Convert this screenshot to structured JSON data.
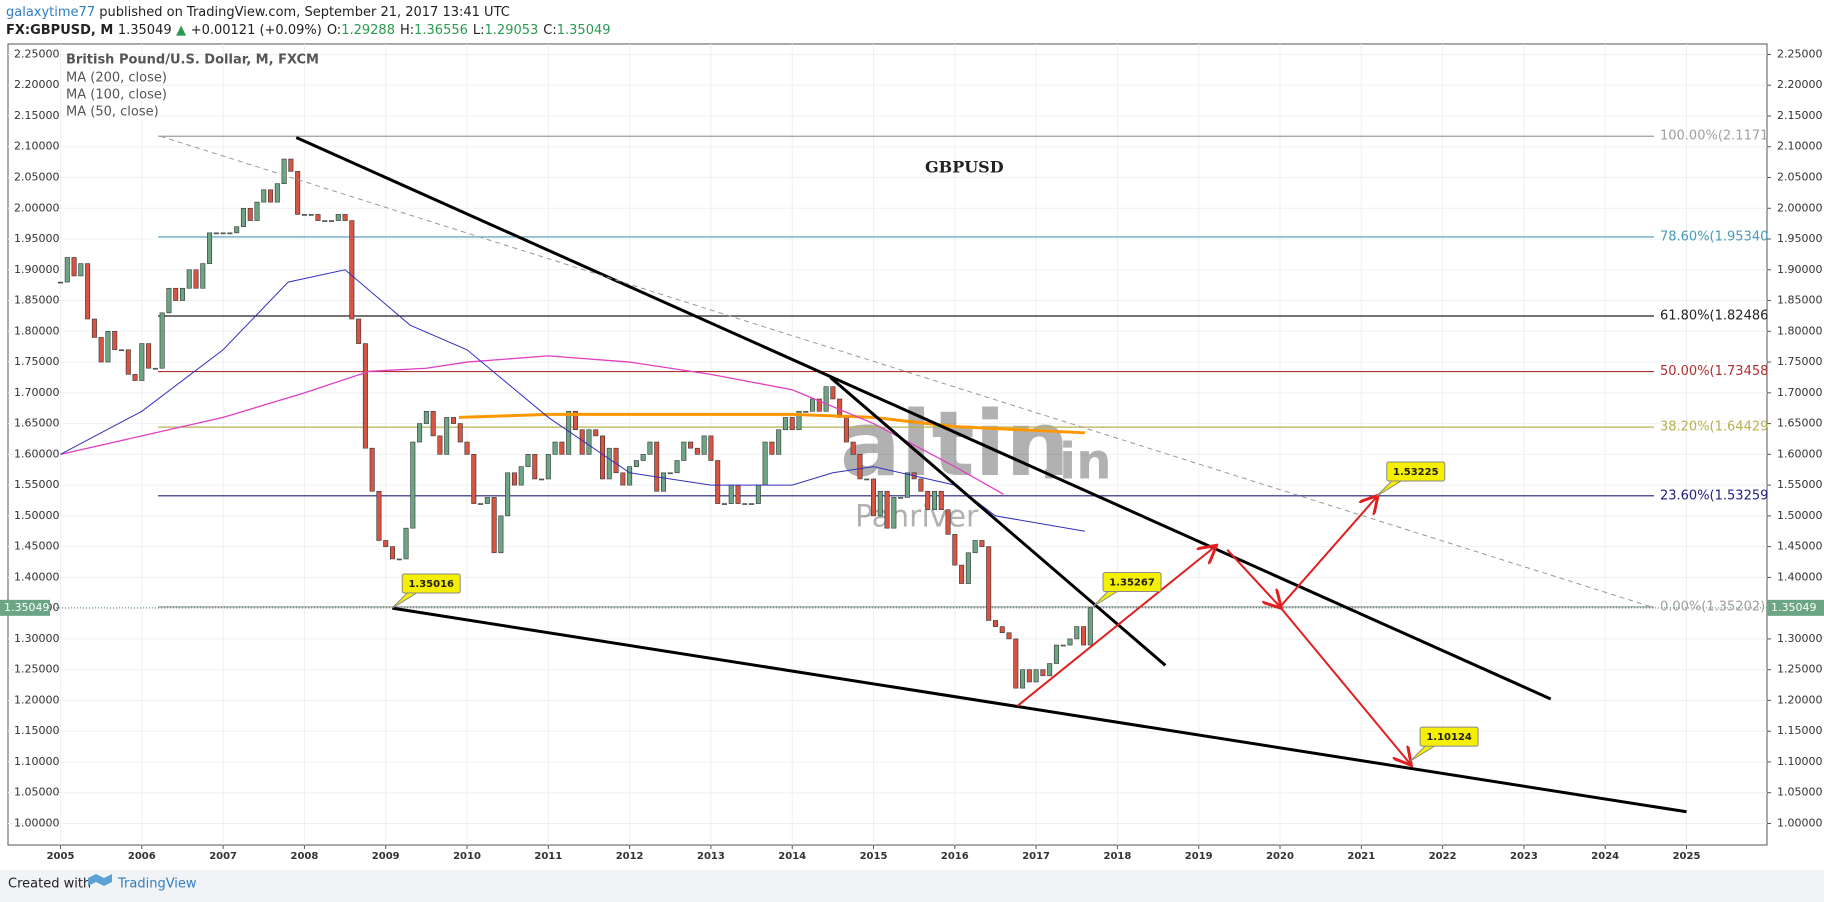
{
  "header": {
    "author": "galaxytime77",
    "published": "published on TradingView.com, September 21, 2017 13:41 UTC",
    "symbol": "FX:GBPUSD, M",
    "last": "1.35049",
    "arrow": "▲",
    "change": "+0.00121 (+0.09%)",
    "ohlc": [
      {
        "label": "O:",
        "value": "1.29288"
      },
      {
        "label": "H:",
        "value": "1.36556"
      },
      {
        "label": "L:",
        "value": "1.29053"
      },
      {
        "label": "C:",
        "value": "1.35049"
      }
    ]
  },
  "footer": {
    "created": "Created with",
    "brand": "TradingView"
  },
  "watermark": {
    "brand": "altin",
    "tld": ".in",
    "sub": "Panriver"
  },
  "chart_data": {
    "type": "candlestick",
    "title": "GBPUSD",
    "legend_title": "British Pound/U.S. Dollar, M, FXCM",
    "first_x": 2005,
    "up_color": "#6ba583",
    "down_color": "#d75442",
    "close": [
      1.88,
      1.92,
      1.89,
      1.91,
      1.82,
      1.79,
      1.75,
      1.8,
      1.77,
      1.77,
      1.73,
      1.72,
      1.78,
      1.74,
      1.74,
      1.83,
      1.87,
      1.85,
      1.87,
      1.9,
      1.87,
      1.91,
      1.96,
      1.96,
      1.96,
      1.96,
      1.97,
      2.0,
      1.98,
      2.01,
      2.03,
      2.01,
      2.04,
      2.08,
      2.06,
      1.99,
      1.99,
      1.99,
      1.98,
      1.98,
      1.98,
      1.99,
      1.98,
      1.82,
      1.78,
      1.61,
      1.54,
      1.46,
      1.45,
      1.43,
      1.43,
      1.48,
      1.62,
      1.65,
      1.67,
      1.63,
      1.6,
      1.66,
      1.65,
      1.62,
      1.6,
      1.52,
      1.52,
      1.53,
      1.44,
      1.5,
      1.57,
      1.55,
      1.58,
      1.6,
      1.56,
      1.56,
      1.6,
      1.62,
      1.6,
      1.67,
      1.64,
      1.6,
      1.64,
      1.63,
      1.56,
      1.61,
      1.57,
      1.55,
      1.58,
      1.59,
      1.6,
      1.62,
      1.54,
      1.57,
      1.57,
      1.59,
      1.62,
      1.61,
      1.6,
      1.63,
      1.59,
      1.52,
      1.52,
      1.55,
      1.52,
      1.52,
      1.52,
      1.55,
      1.62,
      1.6,
      1.64,
      1.66,
      1.64,
      1.67,
      1.67,
      1.69,
      1.67,
      1.71,
      1.69,
      1.66,
      1.62,
      1.6,
      1.56,
      1.56,
      1.5,
      1.54,
      1.48,
      1.53,
      1.53,
      1.57,
      1.56,
      1.54,
      1.51,
      1.54,
      1.51,
      1.47,
      1.42,
      1.39,
      1.44,
      1.46,
      1.45,
      1.33,
      1.32,
      1.31,
      1.3,
      1.22,
      1.25,
      1.23,
      1.25,
      1.24,
      1.26,
      1.29,
      1.29,
      1.3,
      1.32,
      1.29,
      1.35049
    ],
    "series": [
      {
        "name": "MA (200, close)",
        "color": "#ff9800",
        "width": 3,
        "x": [
          2009.9,
          2011,
          2012,
          2013,
          2014,
          2015,
          2016,
          2017.6
        ],
        "values": [
          1.66,
          1.665,
          1.665,
          1.665,
          1.665,
          1.66,
          1.645,
          1.635
        ]
      },
      {
        "name": "MA (100, close)",
        "color": "#e040c0",
        "width": 1.3,
        "x": [
          2005,
          2006,
          2007,
          2008,
          2008.8,
          2009.5,
          2010,
          2011,
          2012,
          2013,
          2014,
          2015,
          2016,
          2016.6
        ],
        "values": [
          1.6,
          1.63,
          1.66,
          1.7,
          1.735,
          1.74,
          1.75,
          1.76,
          1.75,
          1.73,
          1.705,
          1.65,
          1.58,
          1.535
        ]
      },
      {
        "name": "MA (50, close)",
        "color": "#3030c0",
        "width": 1,
        "x": [
          2005,
          2006,
          2007,
          2007.8,
          2008.5,
          2009.3,
          2010,
          2011,
          2012,
          2013,
          2014,
          2014.5,
          2015,
          2016,
          2016.5,
          2017.6
        ],
        "values": [
          1.6,
          1.67,
          1.77,
          1.88,
          1.9,
          1.81,
          1.77,
          1.66,
          1.57,
          1.55,
          1.55,
          1.57,
          1.58,
          1.55,
          1.5,
          1.475
        ]
      }
    ],
    "fib": {
      "x": [
        2006.2,
        2024.6
      ],
      "levels": [
        {
          "label": "100.00%(2.1171",
          "value": 2.1171,
          "color": "#9e9e9e"
        },
        {
          "label": "78.60%(1.95340",
          "value": 1.9534,
          "color": "#4a9ab8"
        },
        {
          "label": "61.80%(1.82486",
          "value": 1.82486,
          "color": "#222222"
        },
        {
          "label": "50.00%(1.73458",
          "value": 1.73458,
          "color": "#b03030"
        },
        {
          "label": "38.20%(1.64429",
          "value": 1.64429,
          "color": "#b8b050"
        },
        {
          "label": "23.60%(1.53259",
          "value": 1.53259,
          "color": "#202080"
        },
        {
          "label": "0.00%(1.35202)",
          "value": 1.35202,
          "color": "#9e9e9e"
        }
      ]
    },
    "trendlines": [
      {
        "x": [
          2007.9,
          2023.33
        ],
        "values": [
          2.115,
          1.2024
        ],
        "color": "#000000",
        "width": 3
      },
      {
        "x": [
          2009.08,
          2025.0
        ],
        "values": [
          1.35,
          1.019
        ],
        "color": "#000000",
        "width": 3
      },
      {
        "x": [
          2014.47,
          2018.59
        ],
        "values": [
          1.725,
          1.257
        ],
        "color": "#000000",
        "width": 3
      },
      {
        "x": [
          2006.23,
          2024.57
        ],
        "values": [
          2.117,
          1.352
        ],
        "color": "#999999",
        "width": 1,
        "dashed": true
      }
    ],
    "arrows": [
      {
        "x": [
          2016.77,
          2019.2
        ],
        "values": [
          1.191,
          1.45
        ],
        "color": "#e02020"
      },
      {
        "x": [
          2019.35,
          2020.0
        ],
        "values": [
          1.445,
          1.352
        ],
        "color": "#e02020"
      },
      {
        "x": [
          2020.0,
          2021.19
        ],
        "values": [
          1.352,
          1.531
        ],
        "color": "#e02020"
      },
      {
        "x": [
          2019.95,
          2021.6
        ],
        "values": [
          1.36,
          1.097
        ],
        "color": "#e02020"
      }
    ],
    "annotations": [
      {
        "x": 2009.08,
        "value": 1.35016
      },
      {
        "x": 2017.7,
        "value": 1.35267
      },
      {
        "x": 2021.19,
        "value": 1.53225
      },
      {
        "x": 2021.6,
        "value": 1.10124
      }
    ],
    "last_price": 1.35049,
    "xlim": [
      2004.354,
      2025.99
    ],
    "ylim": [
      0.965,
      2.267
    ],
    "xticks": [
      2005,
      2006,
      2007,
      2008,
      2009,
      2010,
      2011,
      2012,
      2013,
      2014,
      2015,
      2016,
      2017,
      2018,
      2019,
      2020,
      2021,
      2022,
      2023,
      2024,
      2025
    ],
    "yticks": [
      {
        "value": 1.0,
        "label": "1.00000"
      },
      {
        "value": 1.05,
        "label": "1.05000"
      },
      {
        "value": 1.1,
        "label": "1.10000"
      },
      {
        "value": 1.15,
        "label": "1.15000"
      },
      {
        "value": 1.2,
        "label": "1.20000"
      },
      {
        "value": 1.25,
        "label": "1.25000"
      },
      {
        "value": 1.3,
        "label": "1.30000"
      },
      {
        "value": 1.35,
        "label": "1.35000"
      },
      {
        "value": 1.4,
        "label": "1.40000"
      },
      {
        "value": 1.45,
        "label": "1.45000"
      },
      {
        "value": 1.5,
        "label": "1.50000"
      },
      {
        "value": 1.55,
        "label": "1.55000"
      },
      {
        "value": 1.6,
        "label": "1.60000"
      },
      {
        "value": 1.65,
        "label": "1.65000"
      },
      {
        "value": 1.7,
        "label": "1.70000"
      },
      {
        "value": 1.75,
        "label": "1.75000"
      },
      {
        "value": 1.8,
        "label": "1.80000"
      },
      {
        "value": 1.85,
        "label": "1.85000"
      },
      {
        "value": 1.9,
        "label": "1.90000"
      },
      {
        "value": 1.95,
        "label": "1.95000"
      },
      {
        "value": 2.0,
        "label": "2.00000"
      },
      {
        "value": 2.05,
        "label": "2.05000"
      },
      {
        "value": 2.1,
        "label": "2.10000"
      },
      {
        "value": 2.15,
        "label": "2.15000"
      },
      {
        "value": 2.2,
        "label": "2.20000"
      },
      {
        "value": 2.25,
        "label": "2.25000"
      }
    ],
    "grid": true
  }
}
